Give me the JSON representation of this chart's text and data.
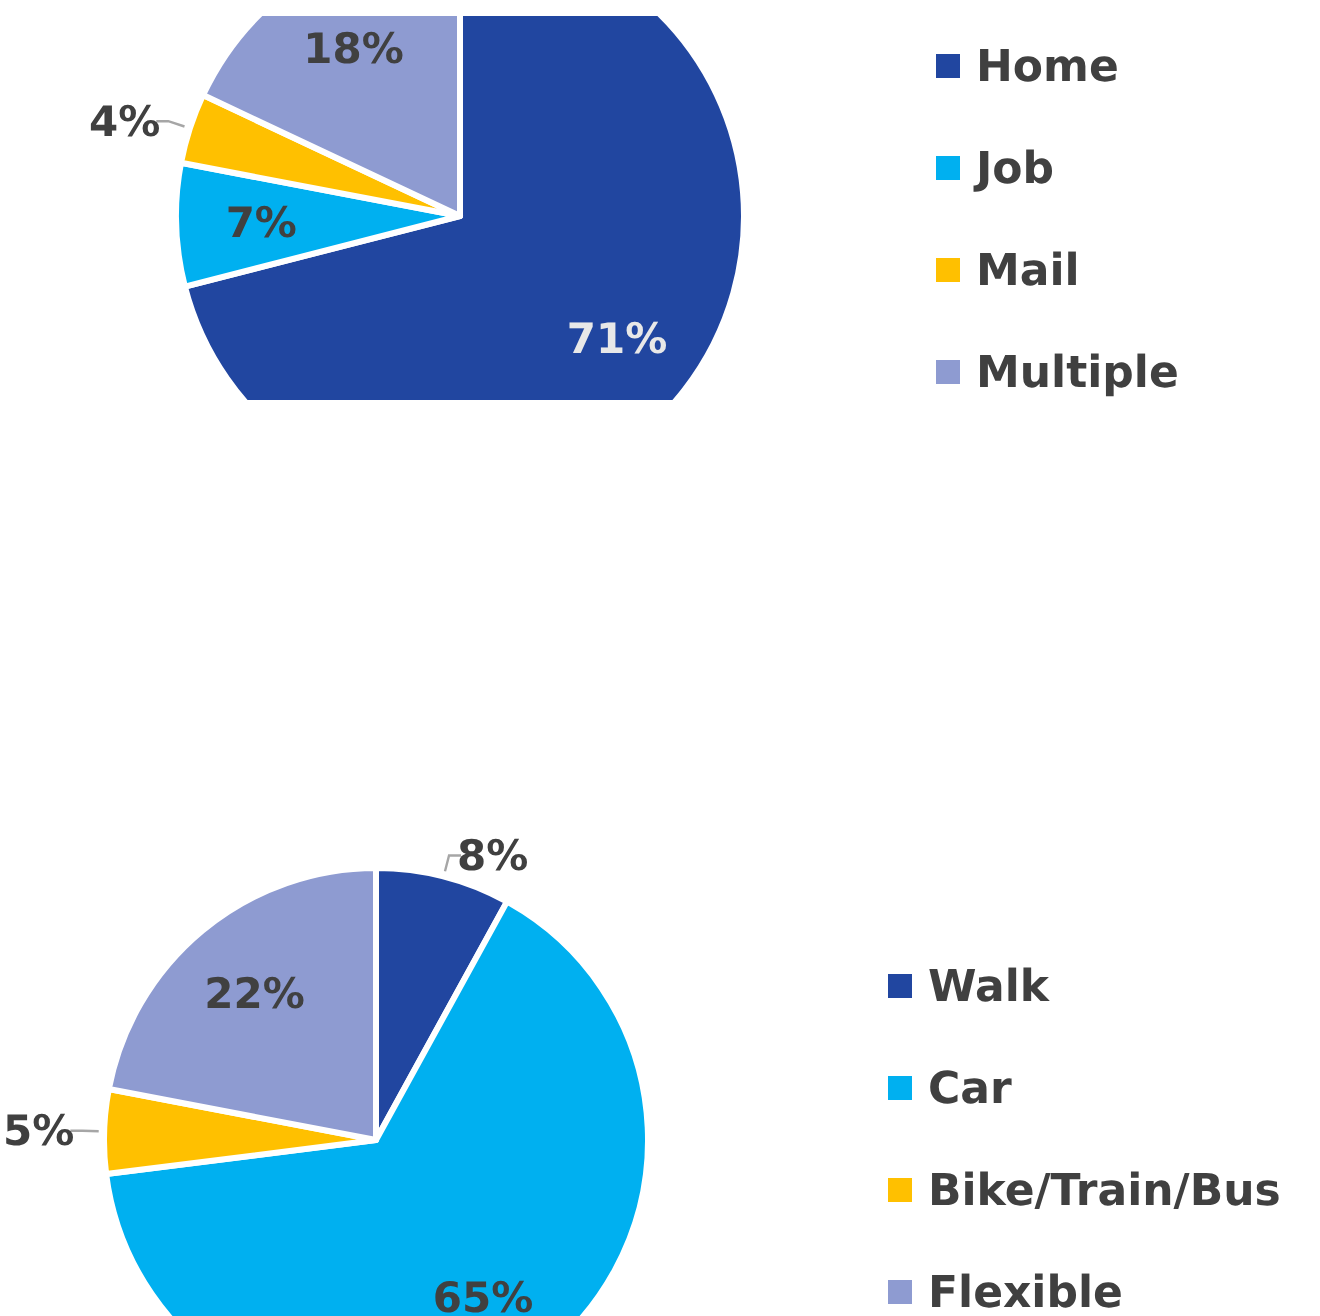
{
  "chart_data": [
    {
      "type": "pie",
      "categories": [
        "Home",
        "Job",
        "Mail",
        "Multiple"
      ],
      "values": [
        71,
        7,
        4,
        18
      ],
      "value_labels": [
        "71%",
        "7%",
        "4%",
        "18%"
      ],
      "colors": [
        "#2146a0",
        "#00b0f0",
        "#ffc000",
        "#8e9bd1"
      ],
      "legend": "right"
    },
    {
      "type": "pie",
      "categories": [
        "Walk",
        "Car",
        "Bike/Train/Bus",
        "Flexible"
      ],
      "values": [
        8,
        65,
        5,
        22
      ],
      "value_labels": [
        "8%",
        "65%",
        "5%",
        "22%"
      ],
      "colors": [
        "#2146a0",
        "#00b0f0",
        "#ffc000",
        "#8e9bd1"
      ],
      "legend": "right"
    }
  ]
}
